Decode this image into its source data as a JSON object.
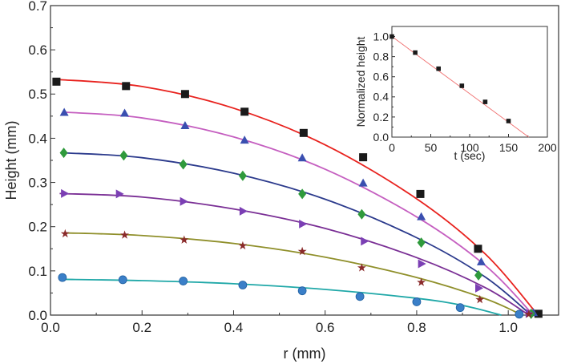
{
  "chart_data": [
    {
      "type": "scatter",
      "xlabel": "r (mm)",
      "ylabel": "Height (mm)",
      "xlim": [
        0,
        1.11
      ],
      "ylim": [
        0,
        0.7
      ],
      "xticks": [
        "0.0",
        "0.2",
        "0.4",
        "0.6",
        "0.8",
        "1.0"
      ],
      "yticks": [
        "0.0",
        "0.1",
        "0.2",
        "0.3",
        "0.4",
        "0.5",
        "0.6",
        "0.7"
      ],
      "grid": false,
      "series": [
        {
          "marker": "square",
          "marker_color": "#1a1a1a",
          "line_color": "#e8221e",
          "points": [
            [
              0.013,
              0.528
            ],
            [
              0.165,
              0.518
            ],
            [
              0.294,
              0.5
            ],
            [
              0.424,
              0.46
            ],
            [
              0.553,
              0.412
            ],
            [
              0.683,
              0.357
            ],
            [
              0.808,
              0.274
            ],
            [
              0.934,
              0.15
            ],
            [
              1.066,
              0.003
            ]
          ],
          "fit": [
            [
              0.015,
              0.533
            ],
            [
              0.2,
              0.517
            ],
            [
              0.4,
              0.468
            ],
            [
              0.6,
              0.385
            ],
            [
              0.8,
              0.263
            ],
            [
              0.95,
              0.138
            ],
            [
              1.065,
              0
            ]
          ]
        },
        {
          "marker": "triangle-up",
          "marker_color": "#3a4fb0",
          "line_color": "#c55fc0",
          "points": [
            [
              0.03,
              0.458
            ],
            [
              0.162,
              0.456
            ],
            [
              0.294,
              0.428
            ],
            [
              0.424,
              0.395
            ],
            [
              0.55,
              0.355
            ],
            [
              0.683,
              0.298
            ],
            [
              0.81,
              0.222
            ],
            [
              0.941,
              0.12
            ],
            [
              1.055,
              0.005
            ]
          ],
          "fit": [
            [
              0.03,
              0.459
            ],
            [
              0.2,
              0.446
            ],
            [
              0.4,
              0.403
            ],
            [
              0.6,
              0.33
            ],
            [
              0.8,
              0.222
            ],
            [
              0.95,
              0.112
            ],
            [
              1.055,
              0
            ]
          ]
        },
        {
          "marker": "diamond",
          "marker_color": "#2f9a3c",
          "line_color": "#2b3a8c",
          "points": [
            [
              0.029,
              0.367
            ],
            [
              0.16,
              0.361
            ],
            [
              0.29,
              0.341
            ],
            [
              0.42,
              0.315
            ],
            [
              0.55,
              0.274
            ],
            [
              0.68,
              0.228
            ],
            [
              0.81,
              0.164
            ],
            [
              0.935,
              0.09
            ],
            [
              1.05,
              0.003
            ]
          ],
          "fit": [
            [
              0.03,
              0.367
            ],
            [
              0.2,
              0.356
            ],
            [
              0.4,
              0.321
            ],
            [
              0.6,
              0.262
            ],
            [
              0.8,
              0.175
            ],
            [
              0.95,
              0.086
            ],
            [
              1.05,
              0
            ]
          ]
        },
        {
          "marker": "triangle-right",
          "marker_color": "#7b3fb4",
          "line_color": "#7a2f95",
          "points": [
            [
              0.03,
              0.275
            ],
            [
              0.15,
              0.274
            ],
            [
              0.29,
              0.257
            ],
            [
              0.42,
              0.235
            ],
            [
              0.55,
              0.206
            ],
            [
              0.685,
              0.167
            ],
            [
              0.81,
              0.116
            ],
            [
              0.935,
              0.061
            ],
            [
              1.045,
              0.004
            ]
          ],
          "fit": [
            [
              0.02,
              0.275
            ],
            [
              0.2,
              0.267
            ],
            [
              0.4,
              0.24
            ],
            [
              0.6,
              0.196
            ],
            [
              0.8,
              0.13
            ],
            [
              0.95,
              0.062
            ],
            [
              1.045,
              0
            ]
          ]
        },
        {
          "marker": "star",
          "marker_color": "#8a2a2a",
          "line_color": "#8f8f2a",
          "points": [
            [
              0.032,
              0.184
            ],
            [
              0.162,
              0.181
            ],
            [
              0.292,
              0.17
            ],
            [
              0.42,
              0.157
            ],
            [
              0.55,
              0.144
            ],
            [
              0.68,
              0.107
            ],
            [
              0.81,
              0.074
            ],
            [
              0.938,
              0.035
            ],
            [
              1.045,
              0.002
            ]
          ],
          "fit": [
            [
              0.03,
              0.186
            ],
            [
              0.2,
              0.18
            ],
            [
              0.4,
              0.162
            ],
            [
              0.6,
              0.131
            ],
            [
              0.8,
              0.085
            ],
            [
              0.95,
              0.037
            ],
            [
              1.03,
              0
            ]
          ]
        },
        {
          "marker": "circle",
          "marker_color": "#3a7fc8",
          "line_color": "#20a8a8",
          "points": [
            [
              0.026,
              0.085
            ],
            [
              0.158,
              0.08
            ],
            [
              0.29,
              0.077
            ],
            [
              0.42,
              0.068
            ],
            [
              0.55,
              0.055
            ],
            [
              0.676,
              0.042
            ],
            [
              0.8,
              0.03
            ],
            [
              0.895,
              0.017
            ],
            [
              1.024,
              0.002
            ]
          ],
          "fit": [
            [
              0.02,
              0.081
            ],
            [
              0.2,
              0.078
            ],
            [
              0.4,
              0.071
            ],
            [
              0.6,
              0.058
            ],
            [
              0.8,
              0.038
            ],
            [
              0.9,
              0.022
            ],
            [
              0.985,
              0
            ]
          ]
        }
      ]
    },
    {
      "type": "scatter",
      "placement": "inset-top-right",
      "xlabel": "t (sec)",
      "ylabel": "Normalized height",
      "xlim": [
        0,
        200
      ],
      "ylim": [
        0,
        1.1
      ],
      "xticks": [
        "0",
        "50",
        "100",
        "150",
        "200"
      ],
      "yticks": [
        "0.0",
        "0.2",
        "0.4",
        "0.6",
        "0.8",
        "1.0"
      ],
      "series": [
        {
          "marker": "square",
          "marker_color": "#1a1a1a",
          "line_color": "#f07070",
          "points": [
            [
              0,
              1.0
            ],
            [
              30,
              0.84
            ],
            [
              60,
              0.68
            ],
            [
              90,
              0.51
            ],
            [
              120,
              0.35
            ],
            [
              150,
              0.16
            ]
          ],
          "fit": [
            [
              0,
              1.0
            ],
            [
              176,
              0
            ]
          ]
        }
      ]
    }
  ]
}
